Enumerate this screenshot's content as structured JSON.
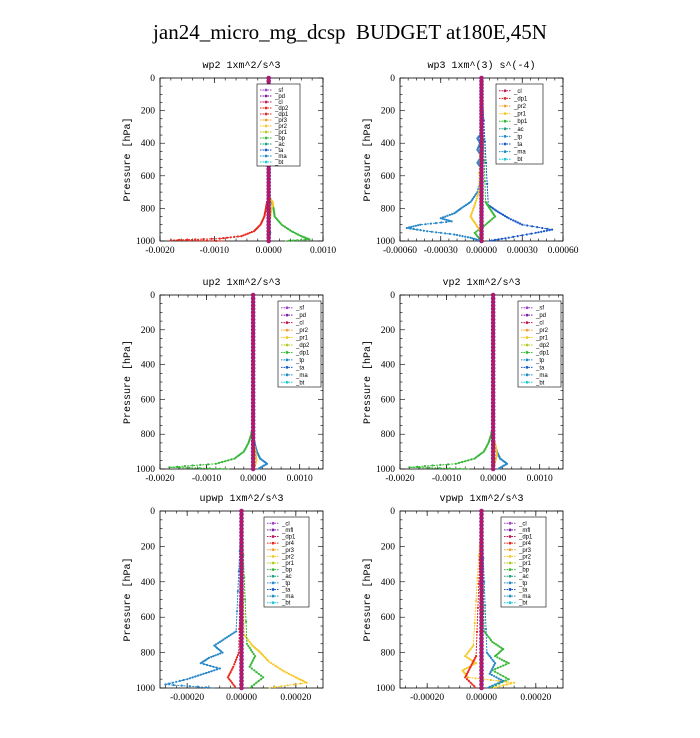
{
  "page": {
    "title": "jan24_micro_mg_dcsp  BUDGET at180E,45N"
  },
  "chart_data": [
    {
      "id": "wp2",
      "type": "line",
      "title": "wp2   1xm^2/s^3",
      "ylabel": "Pressure [hPa]",
      "xlim": [
        -0.002,
        0.001
      ],
      "ylim": [
        1000,
        0
      ],
      "xticks": [
        -0.002,
        -0.001,
        0.0,
        0.001
      ],
      "xtick_labels": [
        "-0.0020",
        "-0.0010",
        "0.0000",
        "0.0010"
      ],
      "yticks": [
        0,
        200,
        400,
        600,
        800,
        1000
      ],
      "ytick_labels": [
        "0",
        "200",
        "400",
        "600",
        "800",
        "1000"
      ],
      "series": [
        {
          "name": "_sf",
          "color": "#9e3fc4"
        },
        {
          "name": "_pd",
          "color": "#7a1fa0"
        },
        {
          "name": "_cl",
          "color": "#c0185a"
        },
        {
          "name": "_dp2",
          "color": "#e8281c"
        },
        {
          "name": "_dp1",
          "color": "#d42a2a"
        },
        {
          "name": "_pr3",
          "color": "#f0a030"
        },
        {
          "name": "_pr2",
          "color": "#f5c829"
        },
        {
          "name": "_pr1",
          "color": "#b8c820"
        },
        {
          "name": "_bp",
          "color": "#38b838"
        },
        {
          "name": "_ac",
          "color": "#20a080"
        },
        {
          "name": "_ta",
          "color": "#1858c8"
        },
        {
          "name": "_ma",
          "color": "#2090c0"
        },
        {
          "name": "_bt",
          "color": "#20c8d8"
        }
      ],
      "curves": [
        {
          "color": "#e8281c",
          "pressure": [
            0,
            600,
            700,
            760,
            800,
            850,
            900,
            940,
            970,
            985,
            995,
            1000
          ],
          "values": [
            0,
            0,
            -1e-05,
            -3e-05,
            -5e-05,
            -8e-05,
            -0.00015,
            -0.00027,
            -0.0005,
            -0.0009,
            -0.0018,
            -0.0008
          ]
        },
        {
          "color": "#38b838",
          "pressure": [
            0,
            650,
            720,
            760,
            800,
            850,
            900,
            940,
            970,
            990,
            1000
          ],
          "values": [
            0,
            0,
            1e-05,
            5e-05,
            9e-05,
            0.00011,
            0.00024,
            0.00042,
            0.0006,
            0.00075,
            0.0003
          ]
        },
        {
          "color": "#f5c829",
          "pressure": [
            0,
            700,
            740,
            760,
            780,
            800,
            850,
            900,
            1000
          ],
          "values": [
            0,
            0,
            3e-05,
            7e-05,
            8e-05,
            5e-05,
            3e-05,
            2e-05,
            0
          ]
        },
        {
          "color": "#20a080",
          "pressure": [
            0,
            850,
            950,
            1000
          ],
          "values": [
            0,
            1e-05,
            3e-05,
            1e-05
          ]
        }
      ]
    },
    {
      "id": "wp3",
      "type": "line",
      "title": "wp3   1xm^(3) s^(-4)",
      "ylabel": "Pressure [hPa]",
      "xlim": [
        -0.0006,
        0.0006
      ],
      "ylim": [
        1000,
        0
      ],
      "xticks": [
        -0.0006,
        -0.0003,
        0.0,
        0.0003,
        0.0006
      ],
      "xtick_labels": [
        "-0.00060",
        "-0.00030",
        "0.00000",
        "0.00030",
        "0.00060"
      ],
      "yticks": [
        0,
        200,
        400,
        600,
        800,
        1000
      ],
      "ytick_labels": [
        "0",
        "200",
        "400",
        "600",
        "800",
        "1000"
      ],
      "series": [
        {
          "name": "_cl",
          "color": "#c0185a"
        },
        {
          "name": "_dp1",
          "color": "#d42a2a"
        },
        {
          "name": "_pr2",
          "color": "#f0a030"
        },
        {
          "name": "_pr1",
          "color": "#f5c829"
        },
        {
          "name": "_bp1",
          "color": "#38b838"
        },
        {
          "name": "_ac",
          "color": "#20a080"
        },
        {
          "name": "_tp",
          "color": "#2888c8"
        },
        {
          "name": "_ta",
          "color": "#1858c8"
        },
        {
          "name": "_ma",
          "color": "#2090c0"
        },
        {
          "name": "_bt",
          "color": "#20c8d8"
        }
      ],
      "curves": [
        {
          "color": "#2888c8",
          "pressure": [
            0,
            340,
            370,
            400,
            440,
            480,
            520,
            560,
            600,
            700,
            760,
            800,
            830,
            860,
            880,
            900,
            920,
            940,
            960,
            980,
            1000
          ],
          "values": [
            0,
            0,
            -3e-05,
            -1e-05,
            -3e-05,
            0,
            -3e-05,
            0,
            0,
            -3e-05,
            -8e-05,
            -0.00015,
            -0.0002,
            -0.0003,
            -0.00022,
            -0.00045,
            -0.00055,
            -0.0004,
            -0.0002,
            -8e-05,
            0
          ]
        },
        {
          "color": "#1858c8",
          "pressure": [
            0,
            780,
            820,
            860,
            900,
            930,
            950,
            980,
            1000
          ],
          "values": [
            0,
            5e-05,
            0.00012,
            0.0002,
            0.0003,
            0.00052,
            0.0004,
            0.0002,
            5e-05
          ]
        },
        {
          "color": "#38b838",
          "pressure": [
            0,
            760,
            800,
            850,
            900,
            950,
            1000
          ],
          "values": [
            0,
            3e-05,
            6e-05,
            0.0001,
            3e-05,
            -5e-05,
            0
          ]
        },
        {
          "color": "#f5c829",
          "pressure": [
            0,
            700,
            780,
            850,
            900,
            950,
            1000
          ],
          "values": [
            0,
            -2e-05,
            -5e-05,
            -8e-05,
            -4e-05,
            0,
            0
          ]
        }
      ]
    },
    {
      "id": "up2",
      "type": "line",
      "title": "up2   1xm^2/s^3",
      "ylabel": "Pressure [hPa]",
      "xlim": [
        -0.002,
        0.0015
      ],
      "ylim": [
        1000,
        0
      ],
      "xticks": [
        -0.002,
        -0.001,
        0.0,
        0.001
      ],
      "xtick_labels": [
        "-0.0020",
        "-0.0010",
        "0.0000",
        "0.0010"
      ],
      "yticks": [
        0,
        200,
        400,
        600,
        800,
        1000
      ],
      "ytick_labels": [
        "0",
        "200",
        "400",
        "600",
        "800",
        "1000"
      ],
      "series": [
        {
          "name": "_sf",
          "color": "#9e3fc4"
        },
        {
          "name": "_pd",
          "color": "#7a1fa0"
        },
        {
          "name": "_cl",
          "color": "#c0185a"
        },
        {
          "name": "_pr2",
          "color": "#f0a030"
        },
        {
          "name": "_pr1",
          "color": "#f5c829"
        },
        {
          "name": "_dp2",
          "color": "#b8c820"
        },
        {
          "name": "_dp1",
          "color": "#38b838"
        },
        {
          "name": "_tp",
          "color": "#2888c8"
        },
        {
          "name": "_ta",
          "color": "#1858c8"
        },
        {
          "name": "_ma",
          "color": "#2090c0"
        },
        {
          "name": "_bt",
          "color": "#20c8d8"
        }
      ],
      "curves": [
        {
          "color": "#38b838",
          "pressure": [
            0,
            700,
            760,
            800,
            850,
            900,
            940,
            970,
            990,
            1000
          ],
          "values": [
            0,
            0,
            -2e-05,
            -4e-05,
            -0.0001,
            -0.0002,
            -0.0004,
            -0.0008,
            -0.0018,
            -0.0005
          ]
        },
        {
          "color": "#2888c8",
          "pressure": [
            0,
            800,
            860,
            900,
            940,
            970,
            1000
          ],
          "values": [
            0,
            1e-05,
            4e-05,
            8e-05,
            0.00015,
            0.0003,
            0.0001
          ]
        },
        {
          "color": "#f5c829",
          "pressure": [
            0,
            850,
            900,
            950,
            1000
          ],
          "values": [
            0,
            2e-05,
            5e-05,
            7e-05,
            2e-05
          ]
        }
      ]
    },
    {
      "id": "vp2",
      "type": "line",
      "title": "vp2   1xm^2/s^3",
      "ylabel": "Pressure [hPa]",
      "xlim": [
        -0.002,
        0.0015
      ],
      "ylim": [
        1000,
        0
      ],
      "xticks": [
        -0.002,
        -0.001,
        0.0,
        0.001
      ],
      "xtick_labels": [
        "-0.0020",
        "-0.0010",
        "0.0000",
        "0.0010"
      ],
      "yticks": [
        0,
        200,
        400,
        600,
        800,
        1000
      ],
      "ytick_labels": [
        "0",
        "200",
        "400",
        "600",
        "800",
        "1000"
      ],
      "series": [
        {
          "name": "_sf",
          "color": "#9e3fc4"
        },
        {
          "name": "_pd",
          "color": "#7a1fa0"
        },
        {
          "name": "_cl",
          "color": "#c0185a"
        },
        {
          "name": "_pr2",
          "color": "#f0a030"
        },
        {
          "name": "_pr1",
          "color": "#f5c829"
        },
        {
          "name": "_dp2",
          "color": "#b8c820"
        },
        {
          "name": "_dp1",
          "color": "#38b838"
        },
        {
          "name": "_tp",
          "color": "#2888c8"
        },
        {
          "name": "_ta",
          "color": "#1858c8"
        },
        {
          "name": "_ma",
          "color": "#2090c0"
        },
        {
          "name": "_bt",
          "color": "#20c8d8"
        }
      ],
      "curves": [
        {
          "color": "#38b838",
          "pressure": [
            0,
            700,
            760,
            800,
            850,
            900,
            940,
            970,
            990,
            1000
          ],
          "values": [
            0,
            0,
            -2e-05,
            -4e-05,
            -0.0001,
            -0.0002,
            -0.0004,
            -0.0008,
            -0.0018,
            -0.0005
          ]
        },
        {
          "color": "#2888c8",
          "pressure": [
            0,
            800,
            860,
            900,
            940,
            970,
            1000
          ],
          "values": [
            0,
            1e-05,
            4e-05,
            8e-05,
            0.00015,
            0.0003,
            0.0001
          ]
        },
        {
          "color": "#f5c829",
          "pressure": [
            0,
            800,
            840,
            880,
            920,
            960,
            1000
          ],
          "values": [
            0,
            1e-05,
            3e-05,
            6e-05,
            8e-05,
            4e-05,
            1e-05
          ]
        }
      ]
    },
    {
      "id": "upwp",
      "type": "line",
      "title": "upwp   1xm^2/s^3",
      "ylabel": "Pressure [hPa]",
      "xlim": [
        -0.0003,
        0.0003
      ],
      "ylim": [
        1000,
        0
      ],
      "xticks": [
        -0.0002,
        0.0,
        0.0002
      ],
      "xtick_labels": [
        "-0.00020",
        "0.00000",
        "0.00020"
      ],
      "yticks": [
        0,
        200,
        400,
        600,
        800,
        1000
      ],
      "ytick_labels": [
        "0",
        "200",
        "400",
        "600",
        "800",
        "1000"
      ],
      "series": [
        {
          "name": "_cl",
          "color": "#9e3fc4"
        },
        {
          "name": "_mfl",
          "color": "#7a1fa0"
        },
        {
          "name": "_dp1",
          "color": "#c0185a"
        },
        {
          "name": "_pr4",
          "color": "#e8281c"
        },
        {
          "name": "_pr3",
          "color": "#f0a030"
        },
        {
          "name": "_pr2",
          "color": "#f5c829"
        },
        {
          "name": "_pr1",
          "color": "#b8c820"
        },
        {
          "name": "_bp",
          "color": "#38b838"
        },
        {
          "name": "_ac",
          "color": "#20a080"
        },
        {
          "name": "_tp",
          "color": "#2888c8"
        },
        {
          "name": "_ta",
          "color": "#1858c8"
        },
        {
          "name": "_ma",
          "color": "#2090c0"
        },
        {
          "name": "_bt",
          "color": "#20c8d8"
        }
      ],
      "curves": [
        {
          "color": "#2888c8",
          "pressure": [
            0,
            680,
            720,
            760,
            800,
            830,
            860,
            890,
            920,
            950,
            980,
            1000
          ],
          "values": [
            0,
            -2e-05,
            -6e-05,
            -0.0001,
            -7e-05,
            -0.00012,
            -0.00015,
            -8e-05,
            -0.00014,
            -0.0002,
            -0.00028,
            -0.0001
          ]
        },
        {
          "color": "#f5c829",
          "pressure": [
            0,
            700,
            760,
            800,
            850,
            900,
            940,
            970,
            1000
          ],
          "values": [
            0,
            1e-05,
            4e-05,
            7e-05,
            0.0001,
            0.00015,
            0.0002,
            0.00024,
            0.0001
          ]
        },
        {
          "color": "#38b838",
          "pressure": [
            0,
            750,
            820,
            880,
            940,
            1000
          ],
          "values": [
            0,
            2e-05,
            5e-05,
            3e-05,
            8e-05,
            3e-05
          ]
        },
        {
          "color": "#e8281c",
          "pressure": [
            0,
            800,
            880,
            940,
            1000
          ],
          "values": [
            0,
            -1e-05,
            -3e-05,
            -5e-05,
            -2e-05
          ]
        }
      ]
    },
    {
      "id": "vpwp",
      "type": "line",
      "title": "vpwp   1xm^2/s^3",
      "ylabel": "Pressure [hPa]",
      "xlim": [
        -0.0003,
        0.0003
      ],
      "ylim": [
        1000,
        0
      ],
      "xticks": [
        -0.0002,
        0.0,
        0.0002
      ],
      "xtick_labels": [
        "-0.00020",
        "0.00000",
        "0.00020"
      ],
      "yticks": [
        0,
        200,
        400,
        600,
        800,
        1000
      ],
      "ytick_labels": [
        "0",
        "200",
        "400",
        "600",
        "800",
        "1000"
      ],
      "series": [
        {
          "name": "_cl",
          "color": "#9e3fc4"
        },
        {
          "name": "_mfl",
          "color": "#7a1fa0"
        },
        {
          "name": "_dp1",
          "color": "#c0185a"
        },
        {
          "name": "_pr4",
          "color": "#e8281c"
        },
        {
          "name": "_pr3",
          "color": "#f0a030"
        },
        {
          "name": "_pr2",
          "color": "#f5c829"
        },
        {
          "name": "_pr1",
          "color": "#b8c820"
        },
        {
          "name": "_bp",
          "color": "#38b838"
        },
        {
          "name": "_ac",
          "color": "#20a080"
        },
        {
          "name": "_tp",
          "color": "#2888c8"
        },
        {
          "name": "_ta",
          "color": "#1858c8"
        },
        {
          "name": "_ma",
          "color": "#2090c0"
        },
        {
          "name": "_bt",
          "color": "#20c8d8"
        }
      ],
      "curves": [
        {
          "color": "#38b838",
          "pressure": [
            0,
            680,
            740,
            780,
            820,
            860,
            900,
            950,
            1000
          ],
          "values": [
            0,
            1e-05,
            4e-05,
            8e-05,
            5e-05,
            0.0001,
            4e-05,
            0.0001,
            3e-05
          ]
        },
        {
          "color": "#f5c829",
          "pressure": [
            0,
            760,
            820,
            860,
            900,
            940,
            970,
            1000
          ],
          "values": [
            0,
            -3e-05,
            -6e-05,
            -2e-05,
            -7e-05,
            -5e-05,
            0.00012,
            4e-05
          ]
        },
        {
          "color": "#2888c8",
          "pressure": [
            0,
            800,
            860,
            920,
            960,
            1000
          ],
          "values": [
            0,
            2e-05,
            5e-05,
            3e-05,
            8e-05,
            2e-05
          ]
        },
        {
          "color": "#e8281c",
          "pressure": [
            0,
            820,
            880,
            940,
            1000
          ],
          "values": [
            0,
            -2e-05,
            -4e-05,
            -6e-05,
            -2e-05
          ]
        }
      ]
    }
  ]
}
